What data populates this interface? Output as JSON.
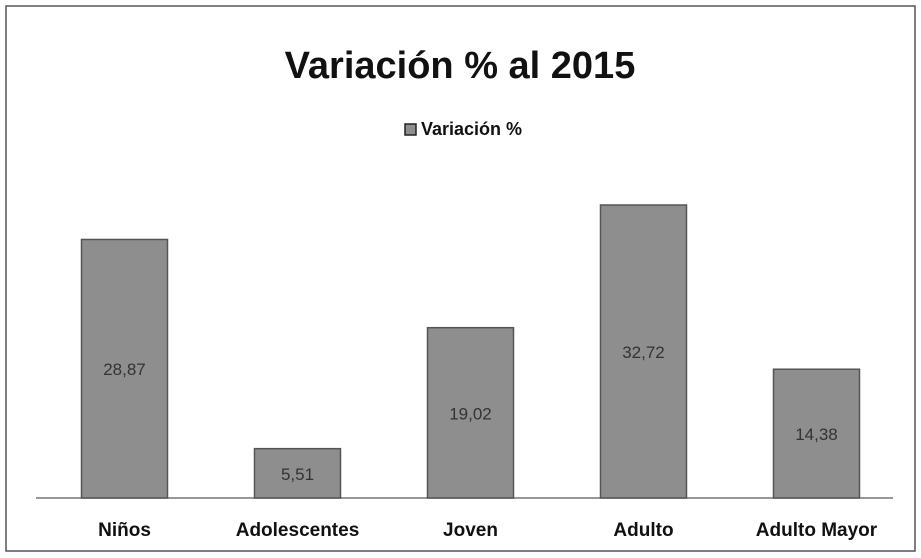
{
  "chart_data": {
    "type": "bar",
    "title": "Variación  % al 2015",
    "categories": [
      "Niños",
      "Adolescentes",
      "Joven",
      "Adulto",
      "Adulto Mayor"
    ],
    "series": [
      {
        "name": "Variación %",
        "color": "#8e8e8e",
        "values": [
          28.87,
          5.51,
          19.02,
          32.72,
          14.38
        ],
        "value_labels": [
          "28,87",
          "5,51",
          "19,02",
          "32,72",
          "14,38"
        ]
      }
    ]
  }
}
